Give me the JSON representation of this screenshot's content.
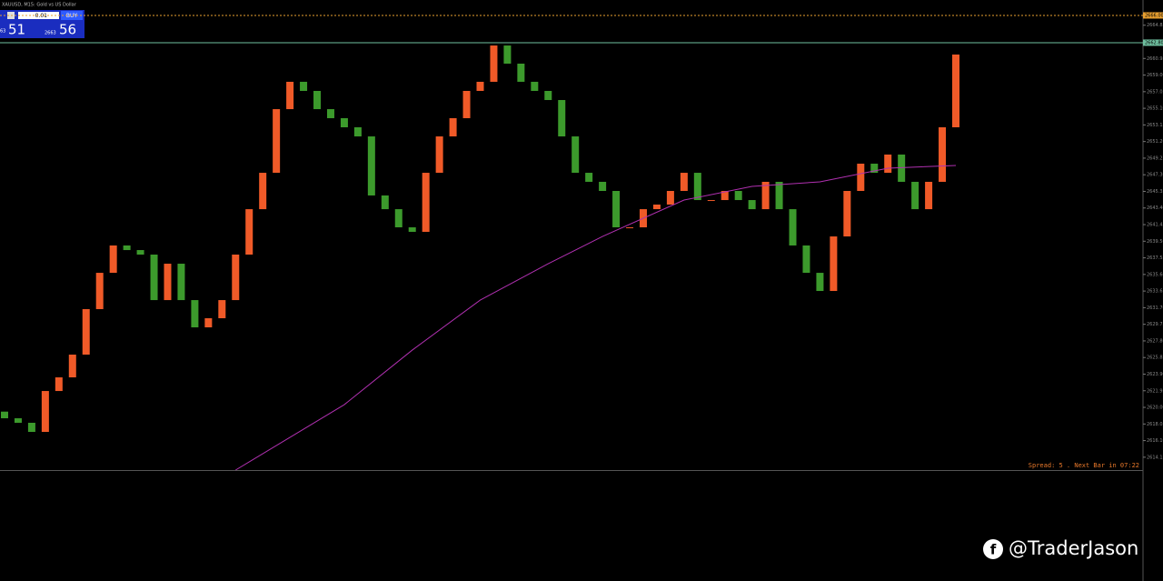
{
  "chart_data": {
    "type": "candlestick",
    "title": "XAUUSD, M15: Gold vs US Dollar",
    "trade_panel": {
      "lot": "0.01",
      "buy": "BUY",
      "sell_prefix": "63",
      "sell_price": "51",
      "buy_prefix": "2663",
      "buy_price": "56"
    },
    "footer": "Spread: 5 . Next Bar in 07:22",
    "watermark": "@TraderJason",
    "up_color": "#f05a28",
    "down_color": "#3c9a2c",
    "ylim": [
      2612.64,
      2667.81
    ],
    "yticks": [
      {
        "value": 2664.85,
        "label": "2664.85"
      },
      {
        "value": 2662.9,
        "label": "2662.90"
      },
      {
        "value": 2660.95,
        "label": "2660.95"
      },
      {
        "value": 2659,
        "label": "2659.00"
      },
      {
        "value": 2657.05,
        "label": "2657.05"
      },
      {
        "value": 2655.1,
        "label": "2655.10"
      },
      {
        "value": 2653.15,
        "label": "2653.15"
      },
      {
        "value": 2651.2,
        "label": "2651.20"
      },
      {
        "value": 2649.25,
        "label": "2649.25"
      },
      {
        "value": 2647.3,
        "label": "2647.30"
      },
      {
        "value": 2645.35,
        "label": "2645.35"
      },
      {
        "value": 2643.4,
        "label": "2643.40"
      },
      {
        "value": 2641.45,
        "label": "2641.45"
      },
      {
        "value": 2639.5,
        "label": "2639.50"
      },
      {
        "value": 2637.55,
        "label": "2637.55"
      },
      {
        "value": 2635.6,
        "label": "2635.60"
      },
      {
        "value": 2633.65,
        "label": "2633.65"
      },
      {
        "value": 2631.7,
        "label": "2631.70"
      },
      {
        "value": 2629.75,
        "label": "2629.75"
      },
      {
        "value": 2627.8,
        "label": "2627.80"
      },
      {
        "value": 2625.85,
        "label": "2625.85"
      },
      {
        "value": 2623.9,
        "label": "2623.90"
      },
      {
        "value": 2621.95,
        "label": "2621.95"
      },
      {
        "value": 2620,
        "label": "2620.00"
      },
      {
        "value": 2618.05,
        "label": "2618.05"
      },
      {
        "value": 2616.1,
        "label": "2616.10"
      },
      {
        "value": 2614.15,
        "label": "2614.15"
      }
    ],
    "hlines": [
      {
        "value": 2666,
        "label": "2666.00",
        "color": "#e8a030"
      },
      {
        "value": 2662.8,
        "label": "2662.80",
        "color": "#6fbf9f"
      }
    ],
    "open": [
      2619.5,
      2618.72,
      2618.19,
      2617.12,
      2621.92,
      2623.52,
      2626.19,
      2631.53,
      2635.79,
      2639.0,
      2638.46,
      2637.93,
      2632.59,
      2636.86,
      2632.59,
      2629.39,
      2630.46,
      2632.59,
      2637.93,
      2643.26,
      2647.53,
      2655.0,
      2658.21,
      2657.14,
      2655.0,
      2653.94,
      2652.87,
      2651.8,
      2644.87,
      2643.26,
      2641.13,
      2640.6,
      2647.53,
      2651.8,
      2653.94,
      2657.14,
      2658.21,
      2662.47,
      2660.34,
      2658.21,
      2657.14,
      2656.07,
      2651.8,
      2647.53,
      2646.47,
      2645.4,
      2641.13,
      2641.13,
      2643.26,
      2643.8,
      2645.4,
      2647.53,
      2644.33,
      2644.33,
      2645.4,
      2644.33,
      2643.26,
      2646.47,
      2643.26,
      2639.0,
      2635.79,
      2633.66,
      2640.06,
      2645.4,
      2648.6,
      2647.53,
      2649.67,
      2646.47,
      2643.26,
      2646.47,
      2652.87
    ],
    "close": [
      2618.72,
      2618.19,
      2617.12,
      2621.92,
      2623.52,
      2626.19,
      2631.53,
      2635.79,
      2639.0,
      2638.46,
      2637.93,
      2632.59,
      2636.86,
      2632.59,
      2629.39,
      2630.46,
      2632.59,
      2637.93,
      2643.26,
      2647.53,
      2655.0,
      2658.21,
      2657.14,
      2655.0,
      2653.94,
      2652.87,
      2651.8,
      2644.87,
      2643.26,
      2641.13,
      2640.6,
      2647.53,
      2651.8,
      2653.94,
      2657.14,
      2658.21,
      2662.47,
      2660.34,
      2658.21,
      2657.14,
      2656.07,
      2651.8,
      2647.53,
      2646.47,
      2645.4,
      2641.13,
      2641.13,
      2643.26,
      2643.8,
      2645.4,
      2647.53,
      2644.33,
      2644.33,
      2645.4,
      2644.33,
      2643.26,
      2646.47,
      2643.26,
      2639.0,
      2635.79,
      2633.66,
      2640.06,
      2645.4,
      2648.6,
      2647.53,
      2649.67,
      2646.47,
      2643.26,
      2646.47,
      2652.87,
      2661.41
    ],
    "ma": {
      "color": "#b030b0",
      "x": [
        17,
        25,
        30,
        35,
        40,
        44,
        50,
        55,
        60,
        65,
        70
      ],
      "values": [
        2612.64,
        2620.32,
        2626.72,
        2632.59,
        2636.86,
        2640.06,
        2644.33,
        2645.93,
        2646.47,
        2648.07,
        2648.39
      ]
    }
  }
}
